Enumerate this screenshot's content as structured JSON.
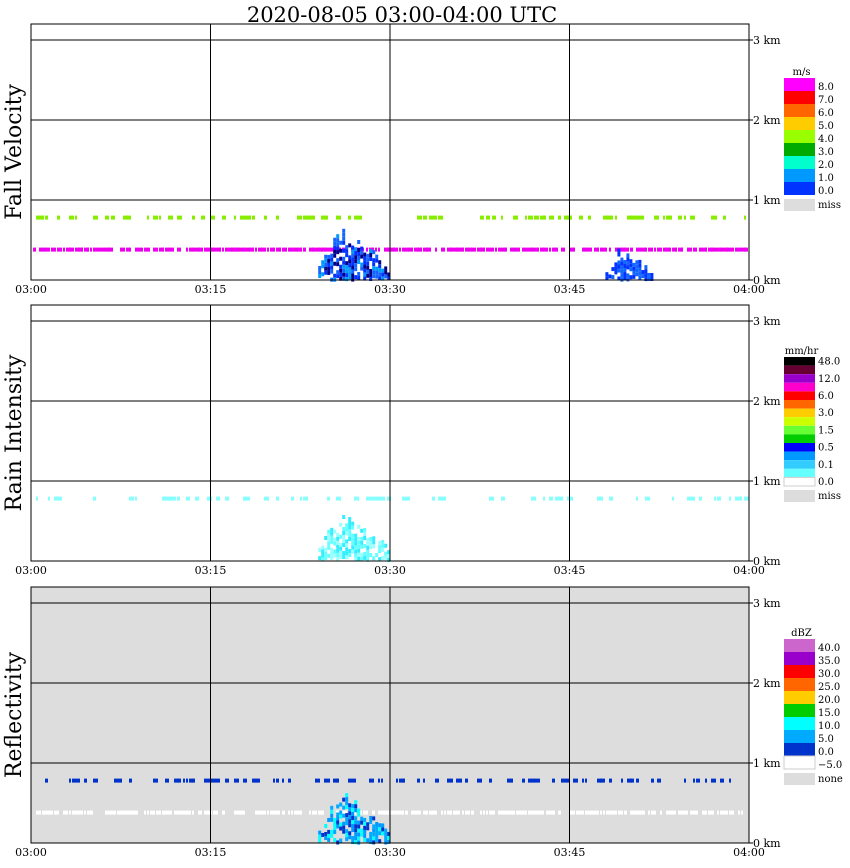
{
  "chart_data": {
    "type": "heatmap",
    "title": "2020-08-05   03:00-04:00 UTC",
    "x_ticks": [
      "03:00",
      "03:15",
      "03:30",
      "03:45",
      "04:00"
    ],
    "y_ticks": [
      "0 km",
      "1 km",
      "2 km",
      "3 km"
    ],
    "ylim_km": [
      0,
      3.2
    ],
    "grid": true,
    "panels": [
      {
        "name": "fall-velocity",
        "ylabel": "Fall Velocity",
        "unit": "m/s",
        "background": "#ffffff",
        "legend": [
          {
            "label": "8.0",
            "color": "#ff00ff"
          },
          {
            "label": "7.0",
            "color": "#ff0000"
          },
          {
            "label": "6.0",
            "color": "#ff6600"
          },
          {
            "label": "5.0",
            "color": "#ffcc00"
          },
          {
            "label": "4.0",
            "color": "#99ff00"
          },
          {
            "label": "3.0",
            "color": "#00aa00"
          },
          {
            "label": "2.0",
            "color": "#00ffcc"
          },
          {
            "label": "1.0",
            "color": "#0099ff"
          },
          {
            "label": "0.0",
            "color": "#0033ff"
          }
        ],
        "miss_label": "miss"
      },
      {
        "name": "rain-intensity",
        "ylabel": "Rain Intensity",
        "unit": "mm/hr",
        "background": "#ffffff",
        "legend": [
          {
            "label": "48.0",
            "color": "#000000"
          },
          {
            "label": "",
            "color": "#660033"
          },
          {
            "label": "12.0",
            "color": "#9900cc"
          },
          {
            "label": "",
            "color": "#ff00cc"
          },
          {
            "label": "6.0",
            "color": "#ff0000"
          },
          {
            "label": "",
            "color": "#ff6600"
          },
          {
            "label": "3.0",
            "color": "#ffcc00"
          },
          {
            "label": "",
            "color": "#ccff00"
          },
          {
            "label": "1.5",
            "color": "#66ff33"
          },
          {
            "label": "",
            "color": "#00cc00"
          },
          {
            "label": "0.5",
            "color": "#0000ff"
          },
          {
            "label": "",
            "color": "#0099ff"
          },
          {
            "label": "0.1",
            "color": "#33ccff"
          },
          {
            "label": "",
            "color": "#66ffff"
          },
          {
            "label": "0.0",
            "color": "#ffffff"
          }
        ],
        "miss_label": "miss"
      },
      {
        "name": "reflectivity",
        "ylabel": "Reflectivity",
        "unit": "dBZ",
        "background": "#dddddd",
        "legend": [
          {
            "label": "40.0",
            "color": "#cc66cc"
          },
          {
            "label": "35.0",
            "color": "#9900cc"
          },
          {
            "label": "30.0",
            "color": "#ff0000"
          },
          {
            "label": "25.0",
            "color": "#ff6600"
          },
          {
            "label": "20.0",
            "color": "#ffcc00"
          },
          {
            "label": "15.0",
            "color": "#00cc00"
          },
          {
            "label": "10.0",
            "color": "#00ffff"
          },
          {
            "label": "5.0",
            "color": "#00aaff"
          },
          {
            "label": "0.0",
            "color": "#0033cc"
          },
          {
            "label": "−5.0",
            "color": "#ffffff"
          }
        ],
        "miss_label": "none"
      }
    ],
    "features": [
      {
        "panel": "fall-velocity",
        "kind": "band",
        "alt_km": 0.78,
        "color": "#88ee00",
        "density": 0.35
      },
      {
        "panel": "fall-velocity",
        "kind": "band",
        "alt_km": 0.38,
        "color": "#ee00ee",
        "density": 0.9
      },
      {
        "panel": "fall-velocity",
        "kind": "cluster",
        "t_min": [
          24,
          30
        ],
        "top_km": 0.75,
        "colors": [
          "#0033ff",
          "#1166ff",
          "#0099ff",
          "#000088"
        ]
      },
      {
        "panel": "fall-velocity",
        "kind": "cluster",
        "t_min": [
          48,
          52
        ],
        "top_km": 0.45,
        "colors": [
          "#0033ff",
          "#1166ff"
        ]
      },
      {
        "panel": "rain-intensity",
        "kind": "band",
        "alt_km": 0.78,
        "color": "#88ffff",
        "density": 0.3
      },
      {
        "panel": "rain-intensity",
        "kind": "cluster",
        "t_min": [
          24,
          30
        ],
        "top_km": 0.7,
        "colors": [
          "#66ffff",
          "#33eeff",
          "#99ffff"
        ]
      },
      {
        "panel": "reflectivity",
        "kind": "band",
        "alt_km": 0.78,
        "color": "#0033cc",
        "density": 0.35
      },
      {
        "panel": "reflectivity",
        "kind": "band",
        "alt_km": 0.38,
        "color": "#ffffff",
        "density": 0.7
      },
      {
        "panel": "reflectivity",
        "kind": "cluster",
        "t_min": [
          24,
          30
        ],
        "top_km": 0.7,
        "colors": [
          "#0033cc",
          "#00aaff",
          "#00ffff",
          "#0099ff"
        ]
      }
    ]
  }
}
